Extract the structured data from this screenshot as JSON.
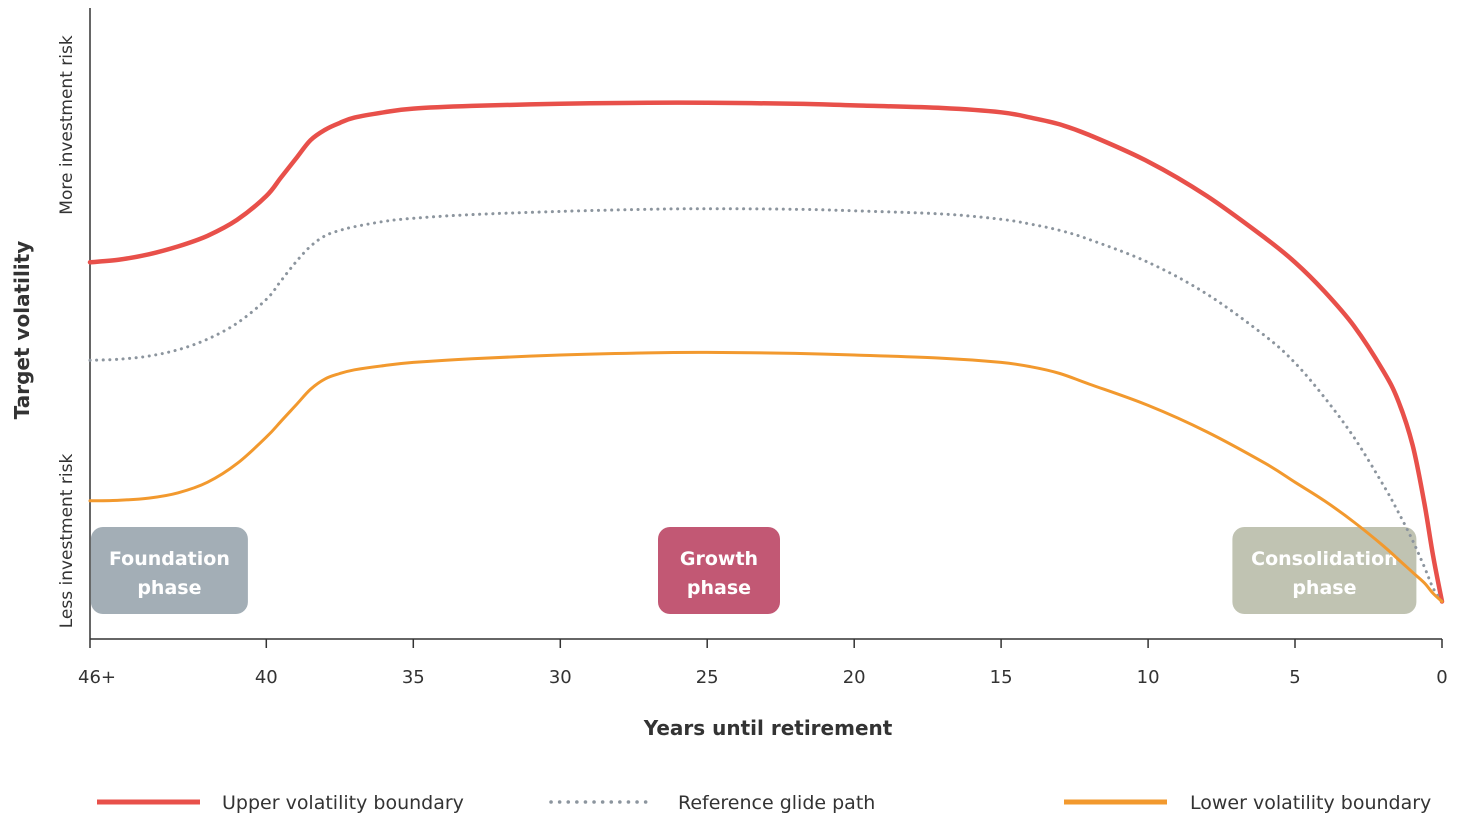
{
  "chart_data": {
    "type": "line",
    "xlabel": "Years until retirement",
    "ylabel": "Target volatility",
    "y_high_label": "More investment risk",
    "y_low_label": "Less investment risk",
    "x_ticks": [
      "46+",
      "40",
      "35",
      "30",
      "25",
      "20",
      "15",
      "10",
      "5",
      "0"
    ],
    "xlim": [
      46,
      0
    ],
    "ylim": [
      0,
      100
    ],
    "grid": false,
    "legend_position": "bottom",
    "series": [
      {
        "name": "Upper volatility boundary",
        "style": "solid",
        "color": "#e8504a",
        "x": [
          46,
          45,
          44,
          43,
          42,
          41,
          40,
          39.5,
          39,
          38.5,
          38,
          37.5,
          37,
          36,
          35,
          33,
          30,
          27,
          25,
          22,
          20,
          17,
          15,
          14,
          13,
          12,
          10,
          8,
          6,
          5,
          4,
          3,
          2,
          1.5,
          1,
          0.6,
          0.3,
          0
        ],
        "y": [
          67.5,
          68,
          69,
          70.5,
          72.5,
          75.5,
          80,
          83.5,
          87,
          90.5,
          92.5,
          93.8,
          94.8,
          95.8,
          96.5,
          97,
          97.4,
          97.6,
          97.6,
          97.4,
          97.1,
          96.6,
          95.8,
          94.8,
          93.5,
          91.5,
          86.5,
          80,
          72,
          67.5,
          62,
          55.5,
          47,
          41.5,
          33,
          22,
          12,
          3.5
        ]
      },
      {
        "name": "Reference glide path",
        "style": "dotted",
        "color": "#8c959e",
        "x": [
          46,
          45,
          44,
          43,
          42,
          41,
          40,
          39.5,
          39,
          38.5,
          38,
          37.5,
          37,
          36,
          35,
          33,
          30,
          27,
          25,
          22,
          20,
          17,
          15,
          14,
          13,
          12,
          10,
          8,
          6,
          5,
          4,
          3,
          2,
          1.5,
          1,
          0.6,
          0.3,
          0
        ],
        "y": [
          49,
          49.2,
          49.8,
          51,
          53,
          56,
          60.5,
          64,
          67.5,
          70.5,
          72.5,
          73.5,
          74.2,
          75.2,
          75.8,
          76.5,
          77.1,
          77.5,
          77.6,
          77.5,
          77.2,
          76.6,
          75.6,
          74.7,
          73.5,
          71.8,
          67.5,
          61.5,
          53.5,
          48.5,
          42,
          34.5,
          25.5,
          20.5,
          15,
          10,
          6,
          3.5
        ]
      },
      {
        "name": "Lower volatility boundary",
        "style": "solid",
        "color": "#f2992e",
        "x": [
          46,
          45,
          44,
          43,
          42,
          41,
          40,
          39.5,
          39,
          38.5,
          38,
          37.5,
          37,
          36,
          35,
          33,
          30,
          27,
          25,
          22,
          20,
          17,
          15,
          14,
          13,
          12,
          10,
          8,
          6,
          5,
          4,
          3,
          2,
          1.5,
          1,
          0.6,
          0.3,
          0
        ],
        "y": [
          22.5,
          22.6,
          23,
          24,
          26,
          29.5,
          34.5,
          37.5,
          40.5,
          43.5,
          45.5,
          46.5,
          47.2,
          48,
          48.6,
          49.3,
          50,
          50.4,
          50.5,
          50.3,
          50,
          49.4,
          48.6,
          47.8,
          46.5,
          44.5,
          40.5,
          35.5,
          29.5,
          26,
          22.5,
          18.5,
          14,
          11.5,
          9,
          7,
          5,
          3.5
        ]
      }
    ],
    "annotations": [
      {
        "label_line1": "Foundation",
        "label_line2": "phase",
        "x_center": 43.3,
        "color": "#a3aeb6"
      },
      {
        "label_line1": "Growth",
        "label_line2": "phase",
        "x_center": 24.6,
        "color": "#c25874"
      },
      {
        "label_line1": "Consolidation",
        "label_line2": "phase",
        "x_center": 4,
        "color": "#b5b8a4"
      }
    ]
  }
}
